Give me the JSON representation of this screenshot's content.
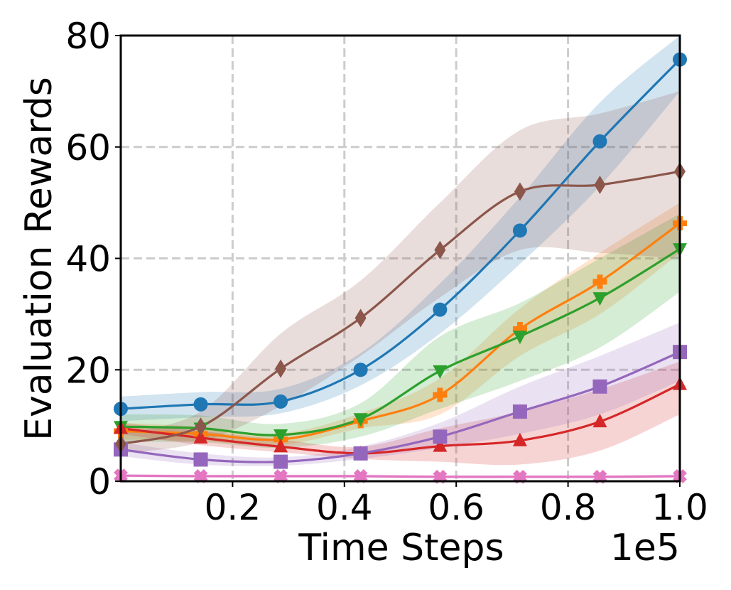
{
  "chart_data": {
    "type": "line",
    "title": "",
    "xlabel": "Time Steps",
    "ylabel": "Evaluation Rewards",
    "x_offset_label": "1e5",
    "xlim": [
      0.0,
      1.0
    ],
    "ylim": [
      0,
      80
    ],
    "x_ticks": [
      0.2,
      0.4,
      0.6,
      0.8,
      1.0
    ],
    "x_tick_labels": [
      "0.2",
      "0.4",
      "0.6",
      "0.8",
      "1.0"
    ],
    "y_ticks": [
      0,
      20,
      40,
      60,
      80
    ],
    "y_tick_labels": [
      "0",
      "20",
      "40",
      "60",
      "80"
    ],
    "grid": true,
    "legend": "none",
    "x": [
      0.0,
      0.143,
      0.286,
      0.429,
      0.571,
      0.714,
      0.857,
      1.0
    ],
    "series": [
      {
        "color": "#1f77b4",
        "marker": "circle",
        "values": [
          13.0,
          13.8,
          14.3,
          20.0,
          30.8,
          45.0,
          61.0,
          75.7
        ],
        "lower": [
          10.8,
          11.5,
          12.2,
          17.2,
          26.5,
          39.0,
          53.0,
          70.0
        ],
        "upper": [
          15.2,
          16.0,
          16.6,
          23.0,
          35.5,
          51.0,
          68.0,
          80.0
        ]
      },
      {
        "color": "#ff7f0e",
        "marker": "plus",
        "values": [
          9.0,
          8.5,
          7.5,
          10.8,
          15.5,
          27.3,
          35.8,
          46.3
        ],
        "lower": [
          7.5,
          7.2,
          6.5,
          9.5,
          12.0,
          22.5,
          30.0,
          41.0
        ],
        "upper": [
          10.5,
          9.8,
          8.6,
          12.2,
          18.5,
          31.0,
          41.0,
          50.0
        ]
      },
      {
        "color": "#2ca02c",
        "marker": "triangle-down",
        "values": [
          9.8,
          9.5,
          8.3,
          11.2,
          19.8,
          26.0,
          32.9,
          41.7
        ],
        "lower": [
          7.0,
          7.0,
          6.0,
          8.0,
          13.0,
          18.0,
          24.0,
          34.0
        ],
        "upper": [
          12.0,
          11.8,
          10.3,
          14.0,
          26.0,
          32.0,
          40.0,
          48.0
        ]
      },
      {
        "color": "#d62728",
        "marker": "triangle-up",
        "values": [
          9.5,
          7.8,
          6.2,
          5.0,
          6.3,
          7.3,
          10.7,
          17.4
        ],
        "lower": [
          8.5,
          6.5,
          5.2,
          4.0,
          3.5,
          3.0,
          5.5,
          12.0
        ],
        "upper": [
          10.5,
          9.0,
          7.5,
          6.2,
          9.5,
          12.5,
          16.5,
          21.5
        ]
      },
      {
        "color": "#9467bd",
        "marker": "square",
        "values": [
          5.7,
          3.9,
          3.5,
          5.0,
          8.0,
          12.5,
          17.0,
          23.2
        ],
        "lower": [
          4.5,
          3.0,
          2.8,
          4.0,
          6.0,
          8.5,
          12.0,
          18.0
        ],
        "upper": [
          7.0,
          5.0,
          4.3,
          6.2,
          10.5,
          17.0,
          22.5,
          28.5
        ]
      },
      {
        "color": "#8c564b",
        "marker": "diamond",
        "values": [
          6.7,
          9.8,
          20.2,
          29.3,
          41.5,
          52.0,
          53.2,
          55.6
        ],
        "lower": [
          5.0,
          7.0,
          13.5,
          22.5,
          33.0,
          41.5,
          41.0,
          40.0
        ],
        "upper": [
          8.5,
          12.5,
          26.5,
          36.0,
          50.0,
          63.0,
          66.0,
          70.0
        ]
      },
      {
        "color": "#e377c2",
        "marker": "x-filled",
        "values": [
          1.0,
          0.9,
          0.9,
          0.9,
          0.8,
          0.8,
          0.8,
          0.9
        ],
        "lower": [
          0.7,
          0.6,
          0.6,
          0.6,
          0.5,
          0.5,
          0.5,
          0.6
        ],
        "upper": [
          1.3,
          1.2,
          1.2,
          1.2,
          1.1,
          1.1,
          1.1,
          1.2
        ]
      }
    ]
  }
}
